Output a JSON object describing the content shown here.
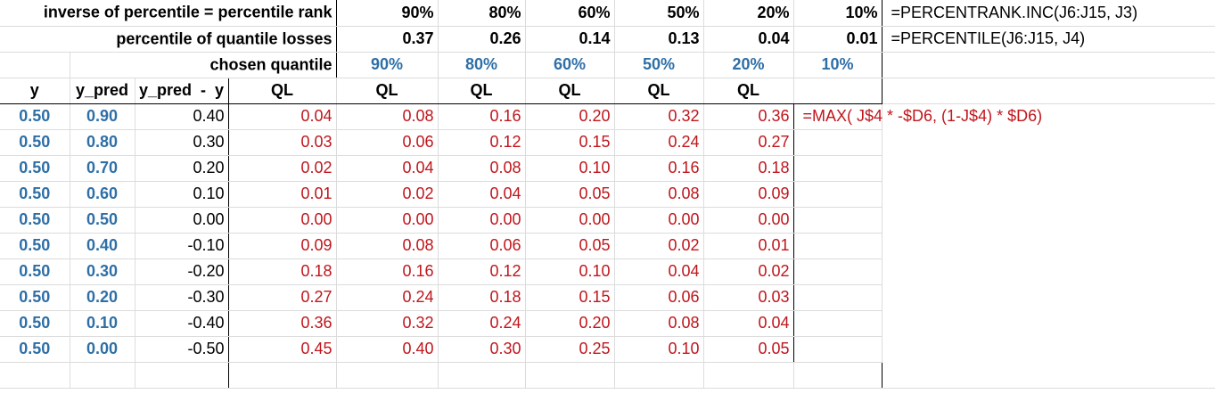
{
  "header_rows": {
    "row1": {
      "label": "inverse of percentile = percentile rank",
      "values": [
        "90%",
        "80%",
        "60%",
        "50%",
        "20%",
        "10%"
      ],
      "formula": "=PERCENTRANK.INC(J6:J15, J3)"
    },
    "row2": {
      "label": "percentile of quantile losses",
      "values": [
        "0.37",
        "0.26",
        "0.14",
        "0.13",
        "0.04",
        "0.01"
      ],
      "formula": "=PERCENTILE(J6:J15,  J4)"
    },
    "row3": {
      "label": "chosen quantile",
      "values": [
        "90%",
        "80%",
        "60%",
        "50%",
        "20%",
        "10%"
      ]
    },
    "row4": {
      "headers": [
        "y",
        "y_pred",
        "y_pred  -  y",
        "QL",
        "QL",
        "QL",
        "QL",
        "QL",
        "QL"
      ]
    }
  },
  "data_formula": "=MAX( J$4 * -$D6,  (1-J$4) * $D6)",
  "rows": [
    [
      "0.50",
      "0.90",
      "0.40",
      "0.04",
      "0.08",
      "0.16",
      "0.20",
      "0.32",
      "0.36"
    ],
    [
      "0.50",
      "0.80",
      "0.30",
      "0.03",
      "0.06",
      "0.12",
      "0.15",
      "0.24",
      "0.27"
    ],
    [
      "0.50",
      "0.70",
      "0.20",
      "0.02",
      "0.04",
      "0.08",
      "0.10",
      "0.16",
      "0.18"
    ],
    [
      "0.50",
      "0.60",
      "0.10",
      "0.01",
      "0.02",
      "0.04",
      "0.05",
      "0.08",
      "0.09"
    ],
    [
      "0.50",
      "0.50",
      "0.00",
      "0.00",
      "0.00",
      "0.00",
      "0.00",
      "0.00",
      "0.00"
    ],
    [
      "0.50",
      "0.40",
      "-0.10",
      "0.09",
      "0.08",
      "0.06",
      "0.05",
      "0.02",
      "0.01"
    ],
    [
      "0.50",
      "0.30",
      "-0.20",
      "0.18",
      "0.16",
      "0.12",
      "0.10",
      "0.04",
      "0.02"
    ],
    [
      "0.50",
      "0.20",
      "-0.30",
      "0.27",
      "0.24",
      "0.18",
      "0.15",
      "0.06",
      "0.03"
    ],
    [
      "0.50",
      "0.10",
      "-0.40",
      "0.36",
      "0.32",
      "0.24",
      "0.20",
      "0.08",
      "0.04"
    ],
    [
      "0.50",
      "0.00",
      "-0.50",
      "0.45",
      "0.40",
      "0.30",
      "0.25",
      "0.10",
      "0.05"
    ]
  ],
  "colors": {
    "blue": "#2e6fa7",
    "red": "#c0161c"
  }
}
